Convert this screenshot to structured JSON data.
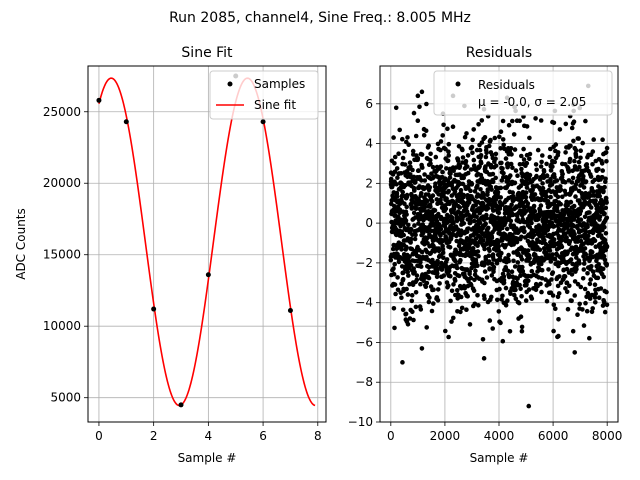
{
  "suptitle": "Run 2085, channel4, Sine Freq.: 8.005 MHz",
  "chart_data": [
    {
      "type": "line",
      "title": "Sine Fit",
      "xlabel": "Sample #",
      "ylabel": "ADC Counts",
      "xlim": [
        -0.4,
        8.3
      ],
      "ylim": [
        3300,
        28200
      ],
      "xticks": [
        0,
        2,
        4,
        6,
        8
      ],
      "yticks": [
        5000,
        10000,
        15000,
        20000,
        25000
      ],
      "grid": true,
      "legend_position": "top-right",
      "series": [
        {
          "name": "Samples",
          "kind": "scatter",
          "color": "#000000",
          "x": [
            0,
            1,
            2,
            3,
            4,
            5,
            6,
            7
          ],
          "y": [
            25800,
            24300,
            11200,
            4500,
            13600,
            27500,
            24300,
            11100
          ]
        },
        {
          "name": "Sine fit",
          "kind": "line",
          "color": "#ff0000",
          "model": {
            "offset": 15900,
            "amplitude": 11450,
            "period_samples": 4.98,
            "peak_at_sample": 0.45
          },
          "x_range": [
            0,
            7.9
          ]
        }
      ]
    },
    {
      "type": "scatter",
      "title": "Residuals",
      "xlabel": "Sample #",
      "ylabel": "",
      "xlim": [
        -400,
        8400
      ],
      "ylim": [
        -10,
        7.9
      ],
      "xticks": [
        0,
        2000,
        4000,
        6000,
        8000
      ],
      "yticks": [
        -10,
        -8,
        -6,
        -4,
        -2,
        0,
        2,
        4,
        6
      ],
      "grid": true,
      "legend_position": "top-right",
      "series": [
        {
          "name": "Residuals",
          "color": "#000000",
          "n_points": 8000,
          "x_range": [
            0,
            8000
          ],
          "mean": -0.0,
          "sigma": 2.05,
          "outliers": [
            {
              "x": 5100,
              "y": -9.2
            },
            {
              "x": 430,
              "y": -7.0
            },
            {
              "x": 3450,
              "y": -6.8
            },
            {
              "x": 1150,
              "y": -6.3
            },
            {
              "x": 7300,
              "y": 6.9
            },
            {
              "x": 1000,
              "y": 6.4
            },
            {
              "x": 2300,
              "y": 6.4
            },
            {
              "x": 4300,
              "y": 6.3
            },
            {
              "x": 1150,
              "y": 6.6
            },
            {
              "x": 6800,
              "y": -6.5
            },
            {
              "x": 200,
              "y": 5.8
            }
          ]
        }
      ],
      "legend": {
        "label": "Residuals",
        "stats": "μ = -0.0, σ = 2.05"
      }
    }
  ]
}
